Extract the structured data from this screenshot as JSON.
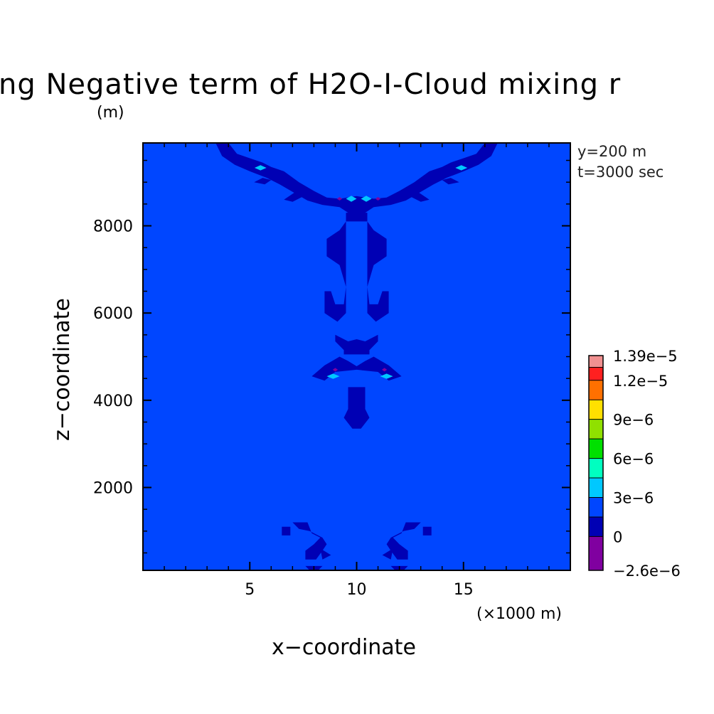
{
  "chart_data": {
    "type": "heatmap",
    "title": "ng Negative term of H2O-I-Cloud mixing r",
    "ylabel_unit": "(m)",
    "xlabel": "x−coordinate",
    "ylabel": "z−coordinate",
    "x_unit": "(×1000 m)",
    "info_lines": [
      "y=200 m",
      "t=3000 sec"
    ],
    "xlim": [
      0,
      20
    ],
    "ylim": [
      100,
      9900
    ],
    "x_ticks": [
      {
        "value": 5,
        "label": "5"
      },
      {
        "value": 10,
        "label": "10"
      },
      {
        "value": 15,
        "label": "15"
      }
    ],
    "y_ticks": [
      {
        "value": 2000,
        "label": "2000"
      },
      {
        "value": 4000,
        "label": "4000"
      },
      {
        "value": 6000,
        "label": "6000"
      },
      {
        "value": 8000,
        "label": "8000"
      }
    ],
    "grid": false,
    "background_level_color": "#0046ff",
    "colorbar": {
      "levels": [
        -2.6e-06,
        0,
        1.5e-06,
        3e-06,
        4.5e-06,
        6e-06,
        7.5e-06,
        9e-06,
        1.05e-05,
        1.2e-05,
        1.3e-05,
        1.39e-05
      ],
      "colors": [
        "#8000a0",
        "#0000b4",
        "#0046ff",
        "#00c8ff",
        "#00ffc0",
        "#00e000",
        "#90e000",
        "#ffe000",
        "#ff7000",
        "#ff2020",
        "#f09090"
      ],
      "labels": [
        {
          "value": -2.6e-06,
          "label": "−2.6e−6"
        },
        {
          "value": 0,
          "label": "0"
        },
        {
          "value": 3e-06,
          "label": "3e−6"
        },
        {
          "value": 6e-06,
          "label": "6e−6"
        },
        {
          "value": 9e-06,
          "label": "9e−6"
        },
        {
          "value": 1.2e-05,
          "label": "1.2e−5"
        },
        {
          "value": 1.39e-05,
          "label": "1.39e−5"
        }
      ]
    },
    "features": [
      {
        "level": "negative",
        "shape": "polygon",
        "points": [
          [
            3.4,
            9900
          ],
          [
            4.0,
            9900
          ],
          [
            4.4,
            9650
          ],
          [
            5.0,
            9550
          ],
          [
            5.6,
            9450
          ],
          [
            6.0,
            9350
          ],
          [
            6.6,
            9250
          ],
          [
            7.3,
            9000
          ],
          [
            8.0,
            8800
          ],
          [
            8.6,
            8650
          ],
          [
            9.2,
            8620
          ],
          [
            10.0,
            8680
          ],
          [
            10.8,
            8620
          ],
          [
            11.4,
            8650
          ],
          [
            12.0,
            8800
          ],
          [
            12.7,
            9000
          ],
          [
            13.4,
            9250
          ],
          [
            14.0,
            9350
          ],
          [
            14.4,
            9450
          ],
          [
            15.0,
            9550
          ],
          [
            15.6,
            9650
          ],
          [
            16.0,
            9900
          ],
          [
            16.6,
            9900
          ],
          [
            16.3,
            9600
          ],
          [
            15.7,
            9400
          ],
          [
            15.0,
            9250
          ],
          [
            14.2,
            9100
          ],
          [
            13.6,
            8950
          ],
          [
            13.0,
            8780
          ],
          [
            12.3,
            8580
          ],
          [
            11.6,
            8480
          ],
          [
            10.8,
            8430
          ],
          [
            10.4,
            8300
          ],
          [
            10.0,
            8200
          ],
          [
            9.6,
            8300
          ],
          [
            9.2,
            8430
          ],
          [
            8.4,
            8480
          ],
          [
            7.7,
            8580
          ],
          [
            7.0,
            8780
          ],
          [
            6.4,
            8950
          ],
          [
            5.8,
            9100
          ],
          [
            5.0,
            9250
          ],
          [
            4.3,
            9400
          ],
          [
            3.7,
            9600
          ]
        ]
      },
      {
        "level": "negative",
        "shape": "polygon",
        "points": [
          [
            5.2,
            9000
          ],
          [
            5.6,
            9100
          ],
          [
            6.0,
            9050
          ],
          [
            5.7,
            8950
          ]
        ]
      },
      {
        "level": "negative",
        "shape": "polygon",
        "points": [
          [
            14.0,
            9050
          ],
          [
            14.4,
            9100
          ],
          [
            14.8,
            9000
          ],
          [
            14.3,
            8950
          ]
        ]
      },
      {
        "level": "negative",
        "shape": "polygon",
        "points": [
          [
            6.6,
            8600
          ],
          [
            7.2,
            8800
          ],
          [
            7.6,
            8700
          ],
          [
            7.0,
            8550
          ]
        ]
      },
      {
        "level": "negative",
        "shape": "polygon",
        "points": [
          [
            12.4,
            8700
          ],
          [
            12.8,
            8800
          ],
          [
            13.4,
            8600
          ],
          [
            13.0,
            8550
          ]
        ]
      },
      {
        "level": "negative",
        "shape": "polygon",
        "points": [
          [
            9.5,
            8300
          ],
          [
            10.5,
            8300
          ],
          [
            10.5,
            6000
          ],
          [
            10.9,
            5800
          ],
          [
            11.5,
            6000
          ],
          [
            11.5,
            6500
          ],
          [
            11.2,
            6500
          ],
          [
            11.0,
            6200
          ],
          [
            10.6,
            6200
          ],
          [
            10.5,
            6600
          ],
          [
            10.8,
            7100
          ],
          [
            11.4,
            7300
          ],
          [
            11.4,
            7700
          ],
          [
            10.8,
            7900
          ],
          [
            10.5,
            8100
          ],
          [
            9.5,
            8100
          ],
          [
            9.2,
            7900
          ],
          [
            8.6,
            7700
          ],
          [
            8.6,
            7300
          ],
          [
            9.2,
            7100
          ],
          [
            9.5,
            6600
          ],
          [
            9.4,
            6200
          ],
          [
            9.0,
            6200
          ],
          [
            8.8,
            6500
          ],
          [
            8.5,
            6500
          ],
          [
            8.5,
            6000
          ],
          [
            9.1,
            5800
          ],
          [
            9.5,
            6000
          ]
        ]
      },
      {
        "level": "negative",
        "shape": "polygon",
        "points": [
          [
            9.0,
            5500
          ],
          [
            9.6,
            5350
          ],
          [
            10.0,
            5400
          ],
          [
            10.4,
            5350
          ],
          [
            11.0,
            5500
          ],
          [
            11.0,
            5350
          ],
          [
            10.6,
            5150
          ],
          [
            10.6,
            5050
          ],
          [
            9.4,
            5050
          ],
          [
            9.4,
            5150
          ],
          [
            9.0,
            5350
          ]
        ]
      },
      {
        "level": "negative",
        "shape": "polygon",
        "points": [
          [
            8.5,
            4800
          ],
          [
            9.2,
            5000
          ],
          [
            9.6,
            4900
          ],
          [
            10.0,
            4780
          ],
          [
            10.4,
            4900
          ],
          [
            10.8,
            5000
          ],
          [
            11.5,
            4800
          ],
          [
            12.1,
            4550
          ],
          [
            11.5,
            4450
          ],
          [
            11.0,
            4650
          ],
          [
            10.0,
            4700
          ],
          [
            9.0,
            4650
          ],
          [
            8.5,
            4450
          ],
          [
            7.9,
            4550
          ]
        ]
      },
      {
        "level": "negative",
        "shape": "polygon",
        "points": [
          [
            9.6,
            4300
          ],
          [
            10.4,
            4300
          ],
          [
            10.4,
            3800
          ],
          [
            10.6,
            3600
          ],
          [
            10.2,
            3350
          ],
          [
            9.8,
            3350
          ],
          [
            9.4,
            3600
          ],
          [
            9.6,
            3800
          ]
        ]
      },
      {
        "level": "negative",
        "shape": "polygon",
        "points": [
          [
            7.0,
            1200
          ],
          [
            7.7,
            1200
          ],
          [
            7.9,
            950
          ],
          [
            8.3,
            850
          ],
          [
            8.0,
            700
          ],
          [
            7.6,
            550
          ],
          [
            7.6,
            350
          ],
          [
            8.1,
            350
          ],
          [
            8.4,
            550
          ],
          [
            8.6,
            700
          ],
          [
            8.4,
            850
          ],
          [
            7.8,
            1000
          ],
          [
            7.3,
            1050
          ]
        ]
      },
      {
        "level": "negative",
        "shape": "polygon",
        "points": [
          [
            13.0,
            1200
          ],
          [
            12.3,
            1200
          ],
          [
            12.1,
            950
          ],
          [
            11.7,
            850
          ],
          [
            12.0,
            700
          ],
          [
            12.4,
            550
          ],
          [
            12.4,
            350
          ],
          [
            11.9,
            350
          ],
          [
            11.6,
            550
          ],
          [
            11.4,
            700
          ],
          [
            11.6,
            850
          ],
          [
            12.2,
            1000
          ],
          [
            12.7,
            1050
          ]
        ]
      },
      {
        "level": "negative",
        "shape": "polygon",
        "points": [
          [
            6.5,
            1100
          ],
          [
            6.9,
            1100
          ],
          [
            6.9,
            900
          ],
          [
            6.5,
            900
          ]
        ]
      },
      {
        "level": "negative",
        "shape": "polygon",
        "points": [
          [
            13.1,
            1100
          ],
          [
            13.5,
            1100
          ],
          [
            13.5,
            900
          ],
          [
            13.1,
            900
          ]
        ]
      },
      {
        "level": "negative",
        "shape": "polygon",
        "points": [
          [
            8.3,
            600
          ],
          [
            8.8,
            450
          ],
          [
            8.4,
            350
          ]
        ]
      },
      {
        "level": "negative",
        "shape": "polygon",
        "points": [
          [
            11.7,
            600
          ],
          [
            11.2,
            450
          ],
          [
            11.6,
            350
          ]
        ]
      },
      {
        "level": "negative",
        "shape": "polygon",
        "points": [
          [
            7.6,
            200
          ],
          [
            8.4,
            200
          ],
          [
            8.2,
            100
          ],
          [
            7.8,
            100
          ]
        ]
      },
      {
        "level": "negative",
        "shape": "polygon",
        "points": [
          [
            11.6,
            200
          ],
          [
            12.4,
            200
          ],
          [
            12.2,
            100
          ],
          [
            11.8,
            100
          ]
        ]
      },
      {
        "level": "positive",
        "shape": "diamond",
        "x": 5.5,
        "z": 9330,
        "rx": 0.28,
        "rz": 60
      },
      {
        "level": "positive",
        "shape": "diamond",
        "x": 14.9,
        "z": 9330,
        "rx": 0.28,
        "rz": 60
      },
      {
        "level": "positive",
        "shape": "diamond",
        "x": 9.75,
        "z": 8620,
        "rx": 0.25,
        "rz": 70
      },
      {
        "level": "positive",
        "shape": "diamond",
        "x": 10.45,
        "z": 8620,
        "rx": 0.25,
        "rz": 70
      },
      {
        "level": "positive",
        "shape": "diamond",
        "x": 8.9,
        "z": 4550,
        "rx": 0.3,
        "rz": 60
      },
      {
        "level": "positive",
        "shape": "diamond",
        "x": 11.4,
        "z": 4550,
        "rx": 0.3,
        "rz": 60
      },
      {
        "level": "minimum",
        "shape": "diamond",
        "x": 9.2,
        "z": 8620,
        "rx": 0.12,
        "rz": 40
      },
      {
        "level": "minimum",
        "shape": "diamond",
        "x": 11.0,
        "z": 8620,
        "rx": 0.12,
        "rz": 40
      },
      {
        "level": "minimum",
        "shape": "diamond",
        "x": 9.0,
        "z": 4700,
        "rx": 0.12,
        "rz": 40
      },
      {
        "level": "minimum",
        "shape": "diamond",
        "x": 11.3,
        "z": 4700,
        "rx": 0.12,
        "rz": 40
      }
    ]
  }
}
